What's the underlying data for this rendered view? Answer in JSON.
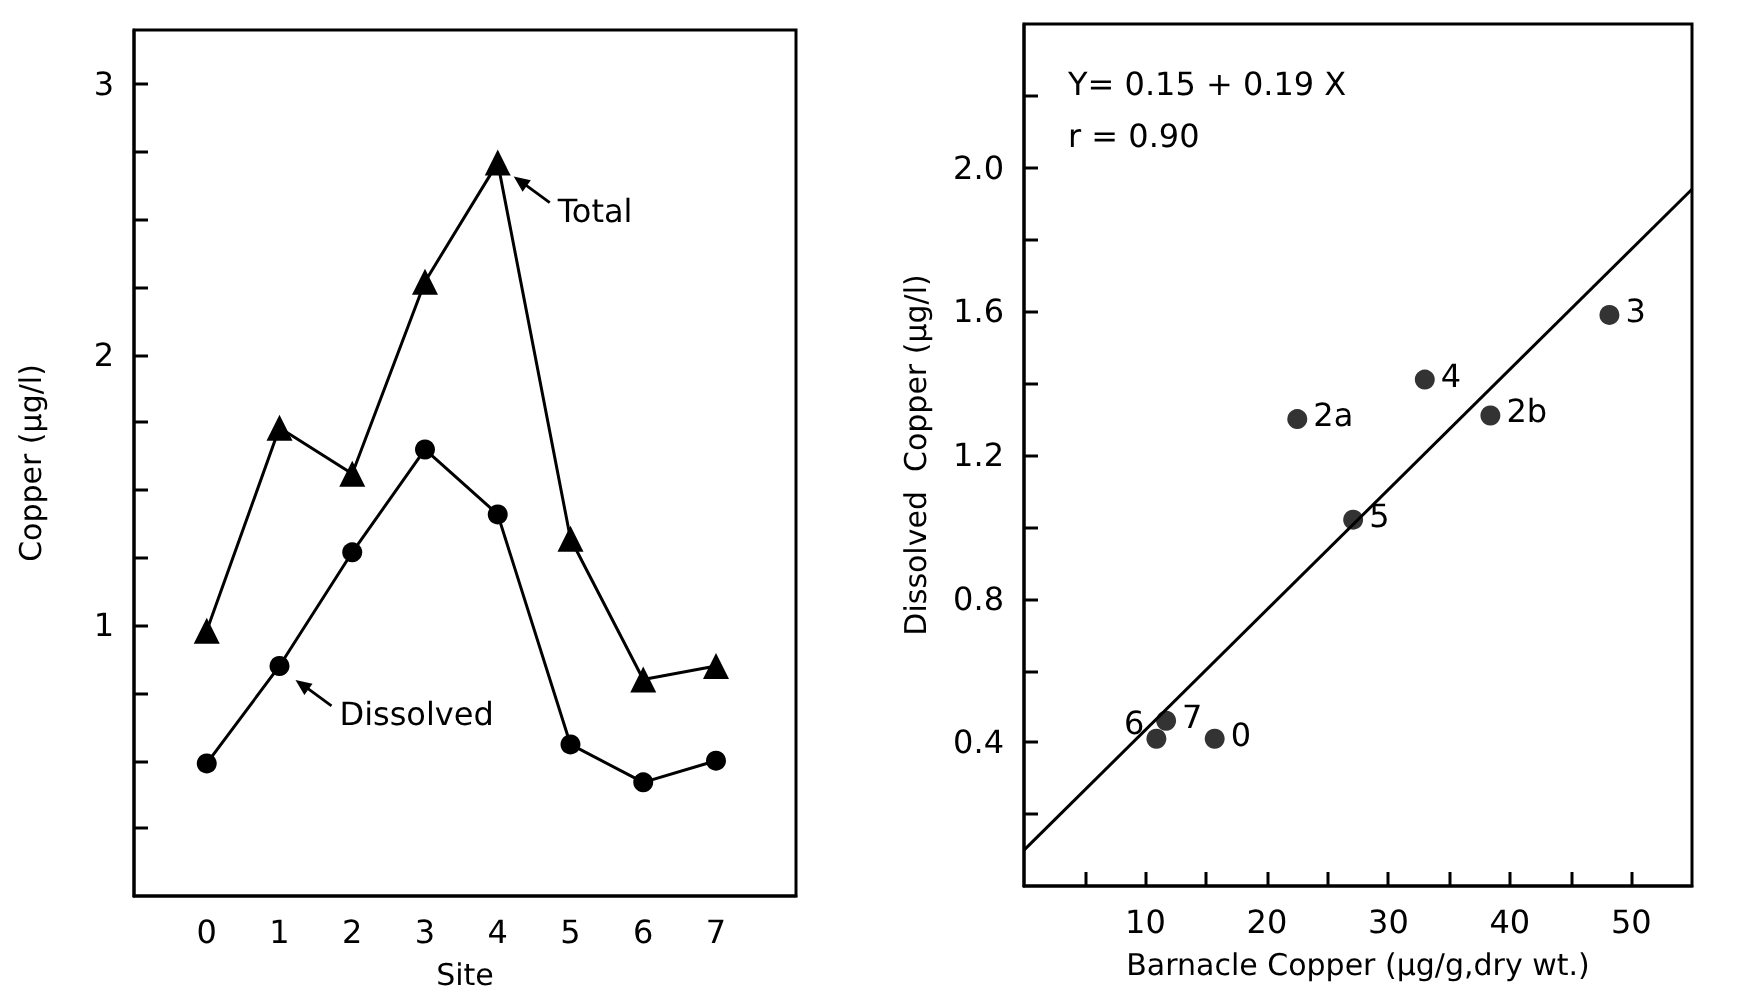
{
  "chart_data": [
    {
      "type": "line",
      "xlabel": "Site",
      "ylabel": "Copper (μg/l)",
      "x": [
        0,
        1,
        2,
        3,
        4,
        5,
        6,
        7
      ],
      "xlim": [
        -1,
        8.1
      ],
      "xticks": [
        0,
        1,
        2,
        3,
        4,
        5,
        6,
        7
      ],
      "ylim": [
        0,
        3.2
      ],
      "yticks": [
        {
          "value": 0.25,
          "label": null
        },
        {
          "value": 0.5,
          "label": null
        },
        {
          "value": 0.75,
          "label": null
        },
        1,
        {
          "value": 1.25,
          "label": null
        },
        {
          "value": 1.5,
          "label": null
        },
        {
          "value": 1.75,
          "label": null
        },
        2,
        {
          "value": 2.25,
          "label": null
        },
        {
          "value": 2.5,
          "label": null
        },
        {
          "value": 2.75,
          "label": null
        },
        3
      ],
      "series": [
        {
          "color": "#000000",
          "marker": "triangle",
          "values": [
            0.98,
            1.73,
            1.56,
            2.27,
            2.71,
            1.32,
            0.8,
            0.85
          ]
        },
        {
          "color": "#000000",
          "marker": "circle",
          "values": [
            0.49,
            0.85,
            1.27,
            1.65,
            1.41,
            0.56,
            0.42,
            0.5
          ]
        }
      ],
      "annotations": [
        {
          "text": "Total",
          "x": 4,
          "y": 2.71
        },
        {
          "text": "Dissolved",
          "x": 1,
          "y": 0.85
        }
      ]
    },
    {
      "type": "scatter",
      "xlabel": "Barnacle Copper (μg/g,dry wt.)",
      "ylabel": "Dissolved  Copper (μg/l)",
      "xlim": [
        0,
        55
      ],
      "xticks": [
        {
          "value": 5,
          "label": null
        },
        10,
        {
          "value": 15,
          "label": null
        },
        20,
        {
          "value": 25,
          "label": null
        },
        30,
        {
          "value": 35,
          "label": null
        },
        40,
        {
          "value": 45,
          "label": null
        },
        50
      ],
      "ylim": [
        0,
        2.4
      ],
      "yticks": [
        {
          "value": 0.2,
          "label": null
        },
        0.4,
        {
          "value": 0.6,
          "label": null
        },
        0.8,
        {
          "value": 1.0,
          "label": null
        },
        1.2,
        {
          "value": 1.4,
          "label": null
        },
        1.6,
        {
          "value": 1.8,
          "label": null
        },
        {
          "value": 2,
          "label": "2.0"
        },
        {
          "value": 2.2,
          "label": null
        }
      ],
      "series": [
        {
          "color": "#000000",
          "marker": "circle",
          "x": [
            10.9,
            11.7,
            15.7,
            22.5,
            27.1,
            33.0,
            38.4,
            48.2
          ],
          "values": [
            0.41,
            0.46,
            0.41,
            1.3,
            1.02,
            1.41,
            1.31,
            1.59
          ]
        },
        {
          "type": "line",
          "color": "#000000",
          "marker": "none",
          "x": [
            0,
            55
          ],
          "values": [
            0.1,
            1.94
          ]
        }
      ],
      "annotations": [
        "Y= 0.15 + 0.19 X",
        "r = 0.90",
        {
          "text": "6",
          "x": 10.9,
          "y": 0.41
        },
        {
          "text": "7",
          "x": 11.7,
          "y": 0.46
        },
        {
          "text": "0",
          "x": 15.7,
          "y": 0.41
        },
        {
          "text": "2a",
          "x": 22.5,
          "y": 1.3
        },
        {
          "text": "5",
          "x": 27.1,
          "y": 1.02
        },
        {
          "text": "4",
          "x": 33.0,
          "y": 1.41
        },
        {
          "text": "2b",
          "x": 38.4,
          "y": 1.31
        },
        {
          "text": "3",
          "x": 48.2,
          "y": 1.59
        }
      ]
    }
  ]
}
